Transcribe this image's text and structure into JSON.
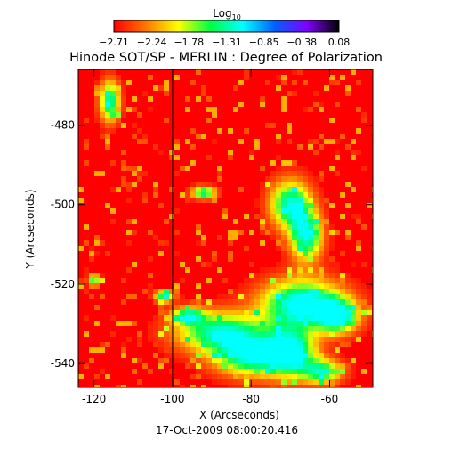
{
  "chart_data": {
    "type": "heatmap",
    "title": "Hinode SOT/SP - MERLIN : Degree of Polarization",
    "xlabel": "X (Arcseconds)",
    "ylabel": "Y (Arcseconds)",
    "footer": "17-Oct-2009 08:00:20.416",
    "xlim": [
      -124,
      -49
    ],
    "ylim": [
      -546,
      -466
    ],
    "x_ticks": [
      -120,
      -100,
      -80,
      -60
    ],
    "y_ticks": [
      -480,
      -500,
      -520,
      -540
    ],
    "x_tick_labels": [
      "-120",
      "-100",
      "-80",
      "-60"
    ],
    "y_tick_labels": [
      "-480",
      "-500",
      "-520",
      "-540"
    ],
    "vertical_line_x": -100,
    "colorbar": {
      "title_base": "Log",
      "title_sub": "10",
      "min": -2.71,
      "max": 0.08,
      "ticks": [
        -2.71,
        -2.24,
        -1.78,
        -1.31,
        -0.85,
        -0.38,
        0.08
      ],
      "tick_labels": [
        "−2.71",
        "−2.24",
        "−1.78",
        "−1.31",
        "−0.85",
        "−0.38",
        "0.08"
      ],
      "colors": [
        "#ff0000",
        "#ff7800",
        "#ffff00",
        "#00ff44",
        "#00ffff",
        "#0060ff",
        "#8000ff",
        "#000000"
      ]
    },
    "regions": [
      {
        "x": -116,
        "y": -474,
        "rx": 2.5,
        "ry": 5,
        "level": 0.35
      },
      {
        "x": -92,
        "y": -497,
        "rx": 3,
        "ry": 1.5,
        "level": 0.35
      },
      {
        "x": -102,
        "y": -523,
        "rx": 2.5,
        "ry": 1.5,
        "level": 0.32
      },
      {
        "x": -120,
        "y": -519,
        "rx": 1.5,
        "ry": 1.5,
        "level": 0.3
      },
      {
        "x": -70,
        "y": -500,
        "rx": 5,
        "ry": 6,
        "level": 0.36
      },
      {
        "x": -66,
        "y": -508,
        "rx": 4,
        "ry": 6,
        "level": 0.36
      },
      {
        "x": -67,
        "y": -525,
        "rx": 10,
        "ry": 6,
        "level": 0.42
      },
      {
        "x": -58,
        "y": -528,
        "rx": 5,
        "ry": 4,
        "level": 0.38
      },
      {
        "x": -88,
        "y": -532,
        "rx": 11,
        "ry": 5,
        "level": 0.34
      },
      {
        "x": -80,
        "y": -538,
        "rx": 9,
        "ry": 5,
        "level": 0.36
      },
      {
        "x": -70,
        "y": -537,
        "rx": 6,
        "ry": 6,
        "level": 0.38
      },
      {
        "x": -62,
        "y": -542,
        "rx": 5,
        "ry": 3,
        "level": 0.32
      },
      {
        "x": -96,
        "y": -528,
        "rx": 4,
        "ry": 2,
        "level": 0.3
      }
    ]
  }
}
